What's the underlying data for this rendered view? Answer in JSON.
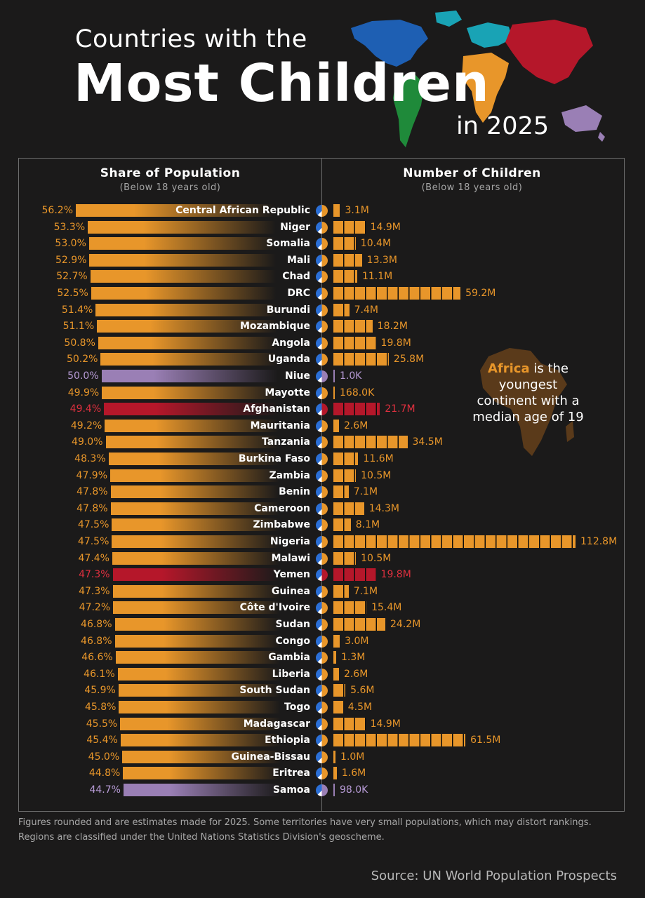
{
  "header": {
    "title_line1": "Countries with the",
    "title_line2": "Most Children",
    "title_line3": "in 2025"
  },
  "left_header": {
    "title": "Share of Population",
    "subtitle": "(Below 18 years old)"
  },
  "right_header": {
    "title": "Number of Children",
    "subtitle": "(Below 18 years old)"
  },
  "annotation": {
    "highlight": "Africa",
    "text": "is the youngest continent with a median age of 19"
  },
  "footnote": {
    "line1": "Figures rounded and are estimates made for 2025. Some territories have very small populations, which may distort rankings.",
    "line2": "Regions are classified under the United Nations Statistics Division's geoscheme."
  },
  "source": "Source:  UN World Population Prospects",
  "colors": {
    "africa": "#e8962a",
    "asia": "#b5172a",
    "oceania": "#9a7fb5",
    "background": "#1b1a1a",
    "africa_text": "#e8962a",
    "asia_text": "#e0303f",
    "oceania_text": "#b79bd6"
  },
  "chart_data": {
    "type": "bar",
    "title": "Countries with the Most Children in 2025",
    "series": [
      {
        "name": "Share of Population (Below 18 years old)",
        "unit": "%"
      },
      {
        "name": "Number of Children (Below 18 years old)",
        "unit": "millions"
      }
    ],
    "rows": [
      {
        "country": "Central African Republic",
        "share": 56.2,
        "share_label": "56.2%",
        "children": 3.1,
        "children_label": "3.1M",
        "region": "africa",
        "flag": "flag-central-african-republic"
      },
      {
        "country": "Niger",
        "share": 53.3,
        "share_label": "53.3%",
        "children": 14.9,
        "children_label": "14.9M",
        "region": "africa",
        "flag": "flag-niger"
      },
      {
        "country": "Somalia",
        "share": 53.0,
        "share_label": "53.0%",
        "children": 10.4,
        "children_label": "10.4M",
        "region": "africa",
        "flag": "flag-somalia"
      },
      {
        "country": "Mali",
        "share": 52.9,
        "share_label": "52.9%",
        "children": 13.3,
        "children_label": "13.3M",
        "region": "africa",
        "flag": "flag-mali"
      },
      {
        "country": "Chad",
        "share": 52.7,
        "share_label": "52.7%",
        "children": 11.1,
        "children_label": "11.1M",
        "region": "africa",
        "flag": "flag-chad"
      },
      {
        "country": "DRC",
        "share": 52.5,
        "share_label": "52.5%",
        "children": 59.2,
        "children_label": "59.2M",
        "region": "africa",
        "flag": "flag-drc"
      },
      {
        "country": "Burundi",
        "share": 51.4,
        "share_label": "51.4%",
        "children": 7.4,
        "children_label": "7.4M",
        "region": "africa",
        "flag": "flag-burundi"
      },
      {
        "country": "Mozambique",
        "share": 51.1,
        "share_label": "51.1%",
        "children": 18.2,
        "children_label": "18.2M",
        "region": "africa",
        "flag": "flag-mozambique"
      },
      {
        "country": "Angola",
        "share": 50.8,
        "share_label": "50.8%",
        "children": 19.8,
        "children_label": "19.8M",
        "region": "africa",
        "flag": "flag-angola"
      },
      {
        "country": "Uganda",
        "share": 50.2,
        "share_label": "50.2%",
        "children": 25.8,
        "children_label": "25.8M",
        "region": "africa",
        "flag": "flag-uganda"
      },
      {
        "country": "Niue",
        "share": 50.0,
        "share_label": "50.0%",
        "children": 0.001,
        "children_label": "1.0K",
        "region": "oceania",
        "flag": "flag-niue"
      },
      {
        "country": "Mayotte",
        "share": 49.9,
        "share_label": "49.9%",
        "children": 0.168,
        "children_label": "168.0K",
        "region": "africa",
        "flag": "flag-mayotte"
      },
      {
        "country": "Afghanistan",
        "share": 49.4,
        "share_label": "49.4%",
        "children": 21.7,
        "children_label": "21.7M",
        "region": "asia",
        "flag": "flag-afghanistan"
      },
      {
        "country": "Mauritania",
        "share": 49.2,
        "share_label": "49.2%",
        "children": 2.6,
        "children_label": "2.6M",
        "region": "africa",
        "flag": "flag-mauritania"
      },
      {
        "country": "Tanzania",
        "share": 49.0,
        "share_label": "49.0%",
        "children": 34.5,
        "children_label": "34.5M",
        "region": "africa",
        "flag": "flag-tanzania"
      },
      {
        "country": "Burkina Faso",
        "share": 48.3,
        "share_label": "48.3%",
        "children": 11.6,
        "children_label": "11.6M",
        "region": "africa",
        "flag": "flag-burkina-faso"
      },
      {
        "country": "Zambia",
        "share": 47.9,
        "share_label": "47.9%",
        "children": 10.5,
        "children_label": "10.5M",
        "region": "africa",
        "flag": "flag-zambia"
      },
      {
        "country": "Benin",
        "share": 47.8,
        "share_label": "47.8%",
        "children": 7.1,
        "children_label": "7.1M",
        "region": "africa",
        "flag": "flag-benin"
      },
      {
        "country": "Cameroon",
        "share": 47.8,
        "share_label": "47.8%",
        "children": 14.3,
        "children_label": "14.3M",
        "region": "africa",
        "flag": "flag-cameroon"
      },
      {
        "country": "Zimbabwe",
        "share": 47.5,
        "share_label": "47.5%",
        "children": 8.1,
        "children_label": "8.1M",
        "region": "africa",
        "flag": "flag-zimbabwe"
      },
      {
        "country": "Nigeria",
        "share": 47.5,
        "share_label": "47.5%",
        "children": 112.8,
        "children_label": "112.8M",
        "region": "africa",
        "flag": "flag-nigeria"
      },
      {
        "country": "Malawi",
        "share": 47.4,
        "share_label": "47.4%",
        "children": 10.5,
        "children_label": "10.5M",
        "region": "africa",
        "flag": "flag-malawi"
      },
      {
        "country": "Yemen",
        "share": 47.3,
        "share_label": "47.3%",
        "children": 19.8,
        "children_label": "19.8M",
        "region": "asia",
        "flag": "flag-yemen"
      },
      {
        "country": "Guinea",
        "share": 47.3,
        "share_label": "47.3%",
        "children": 7.1,
        "children_label": "7.1M",
        "region": "africa",
        "flag": "flag-guinea"
      },
      {
        "country": "Côte d'Ivoire",
        "share": 47.2,
        "share_label": "47.2%",
        "children": 15.4,
        "children_label": "15.4M",
        "region": "africa",
        "flag": "flag-cote-divoire"
      },
      {
        "country": "Sudan",
        "share": 46.8,
        "share_label": "46.8%",
        "children": 24.2,
        "children_label": "24.2M",
        "region": "africa",
        "flag": "flag-sudan"
      },
      {
        "country": "Congo",
        "share": 46.8,
        "share_label": "46.8%",
        "children": 3.0,
        "children_label": "3.0M",
        "region": "africa",
        "flag": "flag-congo"
      },
      {
        "country": "Gambia",
        "share": 46.6,
        "share_label": "46.6%",
        "children": 1.3,
        "children_label": "1.3M",
        "region": "africa",
        "flag": "flag-gambia"
      },
      {
        "country": "Liberia",
        "share": 46.1,
        "share_label": "46.1%",
        "children": 2.6,
        "children_label": "2.6M",
        "region": "africa",
        "flag": "flag-liberia"
      },
      {
        "country": "South Sudan",
        "share": 45.9,
        "share_label": "45.9%",
        "children": 5.6,
        "children_label": "5.6M",
        "region": "africa",
        "flag": "flag-south-sudan"
      },
      {
        "country": "Togo",
        "share": 45.8,
        "share_label": "45.8%",
        "children": 4.5,
        "children_label": "4.5M",
        "region": "africa",
        "flag": "flag-togo"
      },
      {
        "country": "Madagascar",
        "share": 45.5,
        "share_label": "45.5%",
        "children": 14.9,
        "children_label": "14.9M",
        "region": "africa",
        "flag": "flag-madagascar"
      },
      {
        "country": "Ethiopia",
        "share": 45.4,
        "share_label": "45.4%",
        "children": 61.5,
        "children_label": "61.5M",
        "region": "africa",
        "flag": "flag-ethiopia"
      },
      {
        "country": "Guinea-Bissau",
        "share": 45.0,
        "share_label": "45.0%",
        "children": 1.0,
        "children_label": "1.0M",
        "region": "africa",
        "flag": "flag-guinea-bissau"
      },
      {
        "country": "Eritrea",
        "share": 44.8,
        "share_label": "44.8%",
        "children": 1.6,
        "children_label": "1.6M",
        "region": "africa",
        "flag": "flag-eritrea"
      },
      {
        "country": "Samoa",
        "share": 44.7,
        "share_label": "44.7%",
        "children": 0.098,
        "children_label": "98.0K",
        "region": "oceania",
        "flag": "flag-samoa"
      }
    ]
  }
}
